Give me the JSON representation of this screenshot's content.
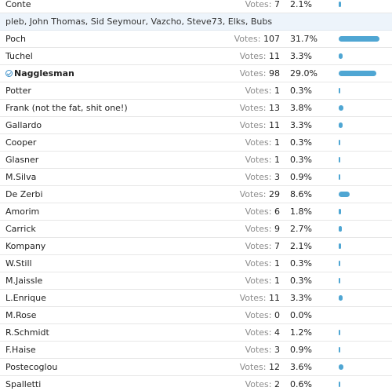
{
  "poll": {
    "votes_label": "Votes:",
    "voters_line": "pleb, John Thomas, Sid Seymour, Vazcho, Steve73, Elks, Bubs",
    "voters_after_index": 0,
    "options": [
      {
        "name": "Conte",
        "votes": 7,
        "percent": "2.1%",
        "share": 2.1
      },
      {
        "name": "Poch",
        "votes": 107,
        "percent": "31.7%",
        "share": 31.7
      },
      {
        "name": "Tuchel",
        "votes": 11,
        "percent": "3.3%",
        "share": 3.3
      },
      {
        "name": "Nagglesman",
        "votes": 98,
        "percent": "29.0%",
        "share": 29.0,
        "selected": true
      },
      {
        "name": "Potter",
        "votes": 1,
        "percent": "0.3%",
        "share": 0.3
      },
      {
        "name": "Frank (not the fat, shit one!)",
        "votes": 13,
        "percent": "3.8%",
        "share": 3.8
      },
      {
        "name": "Gallardo",
        "votes": 11,
        "percent": "3.3%",
        "share": 3.3
      },
      {
        "name": "Cooper",
        "votes": 1,
        "percent": "0.3%",
        "share": 0.3
      },
      {
        "name": "Glasner",
        "votes": 1,
        "percent": "0.3%",
        "share": 0.3
      },
      {
        "name": "M.Silva",
        "votes": 3,
        "percent": "0.9%",
        "share": 0.9
      },
      {
        "name": "De Zerbi",
        "votes": 29,
        "percent": "8.6%",
        "share": 8.6
      },
      {
        "name": "Amorim",
        "votes": 6,
        "percent": "1.8%",
        "share": 1.8
      },
      {
        "name": "Carrick",
        "votes": 9,
        "percent": "2.7%",
        "share": 2.7
      },
      {
        "name": "Kompany",
        "votes": 7,
        "percent": "2.1%",
        "share": 2.1
      },
      {
        "name": "W.Still",
        "votes": 1,
        "percent": "0.3%",
        "share": 0.3
      },
      {
        "name": "M.Jaissle",
        "votes": 1,
        "percent": "0.3%",
        "share": 0.3
      },
      {
        "name": "L.Enrique",
        "votes": 11,
        "percent": "3.3%",
        "share": 3.3
      },
      {
        "name": "M.Rose",
        "votes": 0,
        "percent": "0.0%",
        "share": 0.0
      },
      {
        "name": "R.Schmidt",
        "votes": 4,
        "percent": "1.2%",
        "share": 1.2
      },
      {
        "name": "F.Haise",
        "votes": 3,
        "percent": "0.9%",
        "share": 0.9
      },
      {
        "name": "Postecoglou",
        "votes": 12,
        "percent": "3.6%",
        "share": 3.6
      },
      {
        "name": "Spalletti",
        "votes": 2,
        "percent": "0.6%",
        "share": 0.6
      }
    ]
  },
  "colors": {
    "bar": "#4fa6d3",
    "voters_background": "#edf4fb"
  },
  "icons": {
    "selected_marker": "check-circle-icon"
  }
}
